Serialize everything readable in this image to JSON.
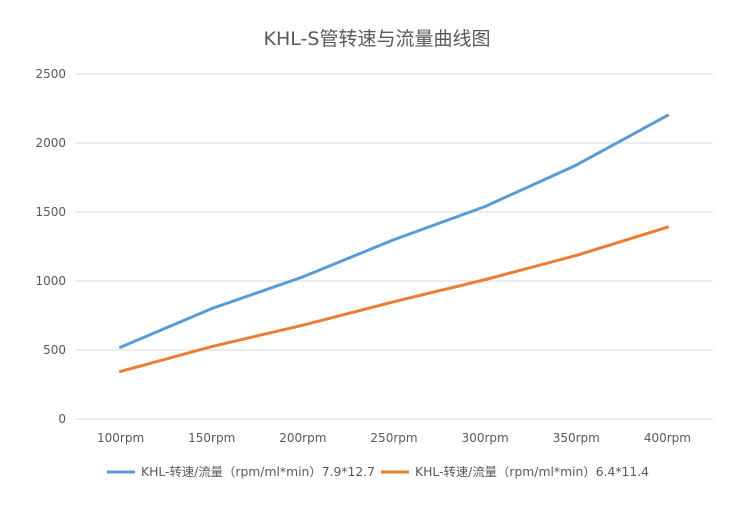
{
  "chart_data": {
    "type": "line",
    "title": "KHL-S管转速与流量曲线图",
    "xlabel": "",
    "ylabel": "",
    "categories": [
      "100rpm",
      "150rpm",
      "200rpm",
      "250rpm",
      "300rpm",
      "350rpm",
      "400rpm"
    ],
    "y_ticks": [
      "0",
      "500",
      "1000",
      "1500",
      "2000",
      "2500"
    ],
    "ylim": [
      0,
      2500
    ],
    "grid": true,
    "legend_position": "bottom",
    "series": [
      {
        "name": "KHL-转速/流量（rpm/ml*min）7.9*12.7",
        "color": "#5b9bd5",
        "values": [
          520,
          800,
          1030,
          1300,
          1540,
          1840,
          2200
        ]
      },
      {
        "name": "KHL-转速/流量（rpm/ml*min）6.4*11.4",
        "color": "#ed7d31",
        "values": [
          345,
          525,
          680,
          850,
          1010,
          1185,
          1390
        ]
      }
    ]
  }
}
